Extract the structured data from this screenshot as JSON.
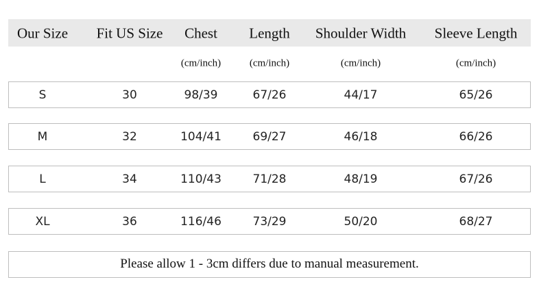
{
  "table": {
    "header": [
      "Our Size",
      "Fit US Size",
      "Chest",
      "Length",
      "Shoulder Width",
      "Sleeve Length"
    ],
    "units": [
      "(cm/inch)",
      "(cm/inch)",
      "(cm/inch)",
      "(cm/inch)"
    ],
    "rows": [
      [
        "S",
        "30",
        "98/39",
        "67/26",
        "44/17",
        "65/26"
      ],
      [
        "M",
        "32",
        "104/41",
        "69/27",
        "46/18",
        "66/26"
      ],
      [
        "L",
        "34",
        "110/43",
        "71/28",
        "48/19",
        "67/26"
      ],
      [
        "XL",
        "36",
        "116/46",
        "73/29",
        "50/20",
        "68/27"
      ]
    ],
    "note": "Please allow 1 - 3cm differs due to manual measurement."
  }
}
